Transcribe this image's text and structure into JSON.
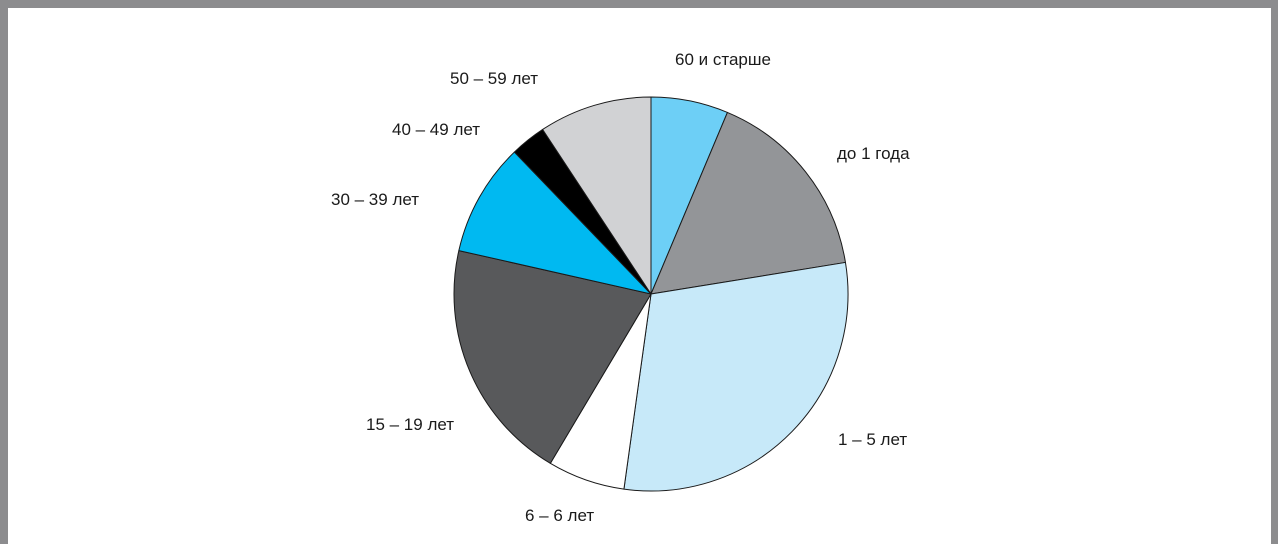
{
  "chart_data": {
    "type": "pie",
    "start": "12 o'clock",
    "direction": "clockwise",
    "title": "",
    "slices": [
      {
        "label": "60 и старше",
        "value": 6.5,
        "color": "#6dcff6"
      },
      {
        "label": "до 1 года",
        "value": 16.5,
        "color": "#939598"
      },
      {
        "label": "1 – 5 лет",
        "value": 30.5,
        "color": "#c7e9f9"
      },
      {
        "label": "6 – 6 лет",
        "value": 6.5,
        "color": "#ffffff"
      },
      {
        "label": "15 – 19 лет",
        "value": 20.5,
        "color": "#58595b"
      },
      {
        "label": "30 – 39 лет",
        "value": 9.5,
        "color": "#00b9f1"
      },
      {
        "label": "40 – 49 лет",
        "value": 3.0,
        "color": "#000000"
      },
      {
        "label": "50 – 59 лет",
        "value": 9.5,
        "color": "#d1d2d4"
      }
    ]
  }
}
